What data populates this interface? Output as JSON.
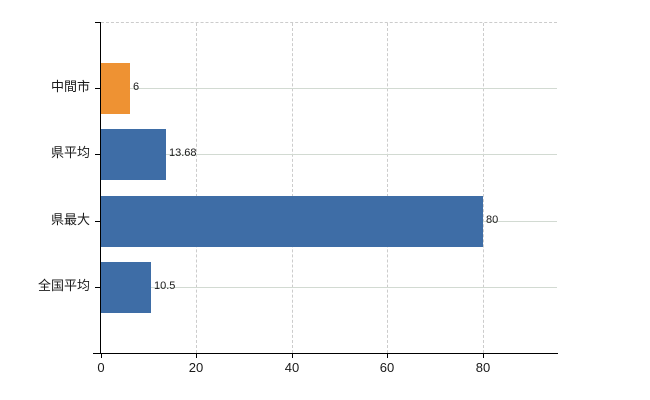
{
  "chart_data": {
    "type": "bar",
    "orientation": "horizontal",
    "title": "",
    "xlabel": "",
    "ylabel": "",
    "categories": [
      "中間市",
      "県平均",
      "県最大",
      "全国平均"
    ],
    "values": [
      6,
      13.68,
      80,
      10.5
    ],
    "value_labels": [
      "6",
      "13.68",
      "80",
      "10.5"
    ],
    "bar_colors": [
      "#ee9233",
      "#3e6da6",
      "#3e6da6",
      "#3e6da6"
    ],
    "xticks": [
      0,
      20,
      40,
      60,
      80
    ],
    "xtick_labels": [
      "0",
      "20",
      "40",
      "60",
      "80"
    ],
    "xlim": [
      0,
      95.6
    ],
    "grid": true,
    "legend": false,
    "style": {
      "highlight_color": "#ee9233",
      "series_color": "#3e6da6",
      "axis_color": "#000000",
      "h_grid_color": "#d2dad2",
      "v_grid_dash_color": "#cccccc",
      "top_border_dash_color": "#cccccc",
      "tick_text_color": "#1a1a1a",
      "value_text_color": "#1a1a1a",
      "background_color": "#ffffff"
    }
  }
}
